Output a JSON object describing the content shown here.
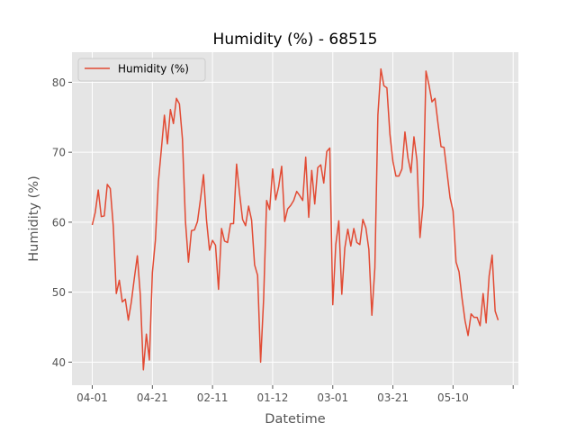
{
  "chart_data": {
    "type": "line",
    "title": "Humidity (%) - 68515",
    "xlabel": "Datetime",
    "ylabel": "Humidity (%)",
    "x_tick_labels": [
      "04-01",
      "04-21",
      "02-11",
      "01-12",
      "03-01",
      "03-21",
      "05-10"
    ],
    "y_ticks": [
      40,
      50,
      60,
      70,
      80
    ],
    "ylim": [
      36.7,
      84.3
    ],
    "grid": true,
    "legend": "top-left",
    "series": [
      {
        "name": "Humidity (%)",
        "color": "#E24A33",
        "values": [
          59.6,
          61.4,
          64.6,
          60.8,
          60.9,
          65.4,
          64.8,
          59.4,
          49.8,
          51.7,
          48.6,
          49.0,
          46.0,
          48.6,
          52.0,
          55.2,
          49.5,
          38.9,
          44.0,
          40.3,
          52.8,
          57.4,
          65.8,
          70.5,
          75.3,
          71.2,
          76.1,
          74.1,
          77.7,
          76.9,
          71.9,
          60.1,
          54.3,
          58.8,
          58.9,
          60.1,
          63.3,
          66.8,
          60.3,
          56.0,
          57.4,
          56.7,
          50.4,
          59.1,
          57.3,
          57.1,
          59.8,
          59.8,
          68.3,
          64.1,
          60.4,
          59.5,
          62.3,
          60.3,
          53.9,
          52.4,
          40.0,
          49.0,
          63.1,
          61.8,
          67.6,
          63.2,
          65.1,
          68.0,
          60.1,
          61.9,
          62.4,
          63.1,
          64.4,
          63.8,
          63.1,
          69.3,
          60.7,
          67.4,
          62.6,
          67.8,
          68.2,
          65.6,
          70.1,
          70.6,
          48.2,
          56.8,
          60.2,
          49.7,
          56.3,
          59.0,
          56.6,
          59.1,
          57.1,
          56.8,
          60.4,
          59.2,
          56.1,
          46.7,
          53.5,
          75.3,
          81.9,
          79.5,
          79.2,
          72.6,
          68.7,
          66.6,
          66.6,
          67.6,
          72.9,
          69.2,
          67.1,
          72.2,
          68.8,
          57.8,
          62.4,
          81.6,
          79.6,
          77.2,
          77.7,
          74.1,
          70.8,
          70.7,
          67.1,
          63.5,
          61.6,
          54.3,
          52.9,
          49.1,
          45.9,
          43.8,
          46.9,
          46.4,
          46.4,
          45.2,
          49.8,
          45.6,
          52.3,
          55.3,
          47.3,
          46.0
        ]
      }
    ]
  }
}
